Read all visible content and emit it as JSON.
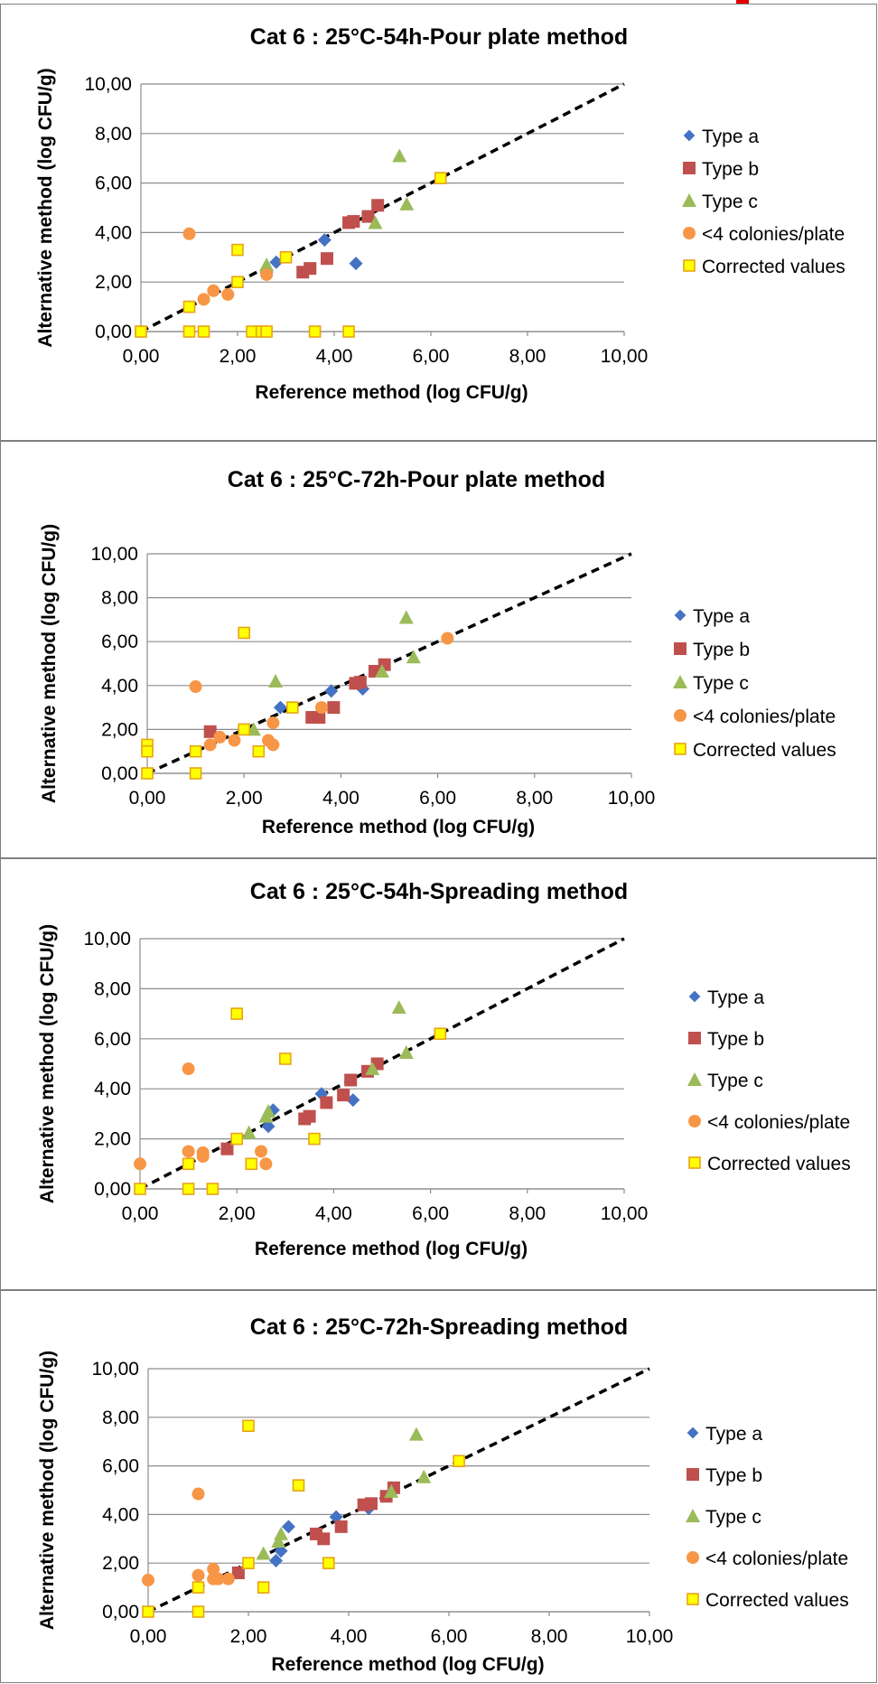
{
  "chart_data": [
    {
      "type": "scatter",
      "title": "Cat 6 : 25°C-54h-Pour plate method",
      "xlabel": "Reference method (log CFU/g)",
      "ylabel": "Alternative method (log CFU/g)",
      "xlim": [
        0,
        10
      ],
      "ylim": [
        0,
        10
      ],
      "x_ticks": [
        "0,00",
        "2,00",
        "4,00",
        "6,00",
        "8,00",
        "10,00"
      ],
      "y_ticks": [
        "0,00",
        "2,00",
        "4,00",
        "6,00",
        "8,00",
        "10,00"
      ],
      "grid": true,
      "diagonal_line": true,
      "legend_position": "right",
      "series": [
        {
          "name": "Type a",
          "marker": "diamond",
          "color": "#4472c4",
          "x": [
            2.6,
            2.8,
            3.8,
            4.45
          ],
          "y": [
            2.4,
            2.8,
            3.7,
            2.75
          ]
        },
        {
          "name": "Type b",
          "marker": "square",
          "color": "#c0504d",
          "x": [
            3.35,
            3.5,
            3.85,
            4.3,
            4.4,
            4.7,
            4.9
          ],
          "y": [
            2.4,
            2.55,
            2.95,
            4.4,
            4.45,
            4.65,
            5.1
          ]
        },
        {
          "name": "Type c",
          "marker": "triangle",
          "color": "#9bbb59",
          "x": [
            2.6,
            4.85,
            5.35,
            5.5
          ],
          "y": [
            2.7,
            4.4,
            7.1,
            5.15
          ]
        },
        {
          "name": "<4 colonies/plate",
          "marker": "circle",
          "color": "#f79646",
          "x": [
            0.0,
            1.0,
            1.0,
            1.3,
            1.5,
            1.8,
            2.6
          ],
          "y": [
            0.0,
            3.95,
            1.0,
            1.3,
            1.65,
            1.5,
            2.3
          ]
        },
        {
          "name": "Corrected values",
          "marker": "square-open",
          "color": "#ffff00",
          "x": [
            0.0,
            1.0,
            1.0,
            1.3,
            2.0,
            2.0,
            2.3,
            2.5,
            2.6,
            3.0,
            3.6,
            4.3,
            6.2
          ],
          "y": [
            0.0,
            1.0,
            0.0,
            0.0,
            3.3,
            2.0,
            0.0,
            0.0,
            0.0,
            3.0,
            0.0,
            0.0,
            6.2
          ]
        }
      ]
    },
    {
      "type": "scatter",
      "title": "Cat 6 : 25°C-72h-Pour plate method",
      "xlabel": "Reference method (log CFU/g)",
      "ylabel": "Alternative method (log CFU/g)",
      "xlim": [
        0,
        10
      ],
      "ylim": [
        0,
        10
      ],
      "x_ticks": [
        "0,00",
        "2,00",
        "4,00",
        "6,00",
        "8,00",
        "10,00"
      ],
      "y_ticks": [
        "0,00",
        "2,00",
        "4,00",
        "6,00",
        "8,00",
        "10,00"
      ],
      "grid": true,
      "diagonal_line": true,
      "legend_position": "right",
      "series": [
        {
          "name": "Type a",
          "marker": "diamond",
          "color": "#4472c4",
          "x": [
            2.75,
            3.8,
            4.45
          ],
          "y": [
            3.0,
            3.75,
            3.85
          ]
        },
        {
          "name": "Type b",
          "marker": "square",
          "color": "#c0504d",
          "x": [
            1.3,
            3.4,
            3.55,
            3.85,
            4.3,
            4.4,
            4.7,
            4.9
          ],
          "y": [
            1.9,
            2.55,
            2.55,
            3.0,
            4.1,
            4.15,
            4.65,
            4.95
          ]
        },
        {
          "name": "Type c",
          "marker": "triangle",
          "color": "#9bbb59",
          "x": [
            2.2,
            2.65,
            4.85,
            5.35,
            5.5
          ],
          "y": [
            2.0,
            4.2,
            4.65,
            7.1,
            5.3
          ]
        },
        {
          "name": "<4 colonies/plate",
          "marker": "circle",
          "color": "#f79646",
          "x": [
            1.0,
            1.3,
            1.5,
            1.8,
            2.5,
            2.6,
            2.6,
            3.6,
            6.2
          ],
          "y": [
            3.95,
            1.3,
            1.65,
            1.5,
            1.5,
            1.3,
            2.3,
            3.0,
            6.15
          ]
        },
        {
          "name": "Corrected values",
          "marker": "square-open",
          "color": "#ffff00",
          "x": [
            0.0,
            0.0,
            0.0,
            1.0,
            1.0,
            2.0,
            2.0,
            2.3,
            3.0
          ],
          "y": [
            1.3,
            1.0,
            0.0,
            1.0,
            0.0,
            6.4,
            2.0,
            1.0,
            3.0
          ]
        }
      ]
    },
    {
      "type": "scatter",
      "title": "Cat 6 : 25°C-54h-Spreading method",
      "xlabel": "Reference method (log CFU/g)",
      "ylabel": "Alternative method (log CFU/g)",
      "xlim": [
        0,
        10
      ],
      "ylim": [
        0,
        10
      ],
      "x_ticks": [
        "0,00",
        "2,00",
        "4,00",
        "6,00",
        "8,00",
        "10,00"
      ],
      "y_ticks": [
        "0,00",
        "2,00",
        "4,00",
        "6,00",
        "8,00",
        "10,00"
      ],
      "grid": true,
      "diagonal_line": true,
      "legend_position": "right",
      "series": [
        {
          "name": "Type a",
          "marker": "diamond",
          "color": "#4472c4",
          "x": [
            2.65,
            2.75,
            3.75,
            4.4
          ],
          "y": [
            2.5,
            3.15,
            3.8,
            3.55
          ]
        },
        {
          "name": "Type b",
          "marker": "square",
          "color": "#c0504d",
          "x": [
            1.8,
            3.4,
            3.5,
            3.85,
            4.2,
            4.35,
            4.7,
            4.9
          ],
          "y": [
            1.6,
            2.8,
            2.9,
            3.45,
            3.75,
            4.35,
            4.7,
            5.0
          ]
        },
        {
          "name": "Type c",
          "marker": "triangle",
          "color": "#9bbb59",
          "x": [
            2.25,
            2.6,
            2.65,
            4.8,
            5.35,
            5.5
          ],
          "y": [
            2.25,
            2.9,
            3.1,
            4.8,
            7.25,
            5.45
          ]
        },
        {
          "name": "<4 colonies/plate",
          "marker": "circle",
          "color": "#f79646",
          "x": [
            0.0,
            1.0,
            1.0,
            1.3,
            1.3,
            2.5,
            2.6
          ],
          "y": [
            1.0,
            4.8,
            1.5,
            1.45,
            1.3,
            1.5,
            1.0
          ]
        },
        {
          "name": "Corrected values",
          "marker": "square-open",
          "color": "#ffff00",
          "x": [
            0.0,
            1.0,
            1.0,
            1.5,
            2.0,
            2.0,
            2.3,
            3.0,
            3.6,
            6.2
          ],
          "y": [
            0.0,
            1.0,
            0.0,
            0.0,
            7.0,
            2.0,
            1.0,
            5.2,
            2.0,
            6.2
          ]
        }
      ]
    },
    {
      "type": "scatter",
      "title": "Cat 6 : 25°C-72h-Spreading method",
      "xlabel": "Reference method (log CFU/g)",
      "ylabel": "Alternative method (log CFU/g)",
      "xlim": [
        0,
        10
      ],
      "ylim": [
        0,
        10
      ],
      "x_ticks": [
        "0,00",
        "2,00",
        "4,00",
        "6,00",
        "8,00",
        "10,00"
      ],
      "y_ticks": [
        "0,00",
        "2,00",
        "4,00",
        "6,00",
        "8,00",
        "10,00"
      ],
      "grid": true,
      "diagonal_line": true,
      "legend_position": "right",
      "series": [
        {
          "name": "Type a",
          "marker": "diamond",
          "color": "#4472c4",
          "x": [
            2.55,
            2.65,
            2.8,
            3.75,
            4.4
          ],
          "y": [
            2.1,
            2.5,
            3.5,
            3.9,
            4.25
          ]
        },
        {
          "name": "Type b",
          "marker": "square",
          "color": "#c0504d",
          "x": [
            1.8,
            3.35,
            3.5,
            3.85,
            4.3,
            4.45,
            4.75,
            4.9
          ],
          "y": [
            1.6,
            3.2,
            3.0,
            3.5,
            4.4,
            4.45,
            4.75,
            5.1
          ]
        },
        {
          "name": "Type c",
          "marker": "triangle",
          "color": "#9bbb59",
          "x": [
            2.3,
            2.6,
            2.65,
            4.85,
            5.35,
            5.5
          ],
          "y": [
            2.4,
            2.9,
            3.2,
            4.95,
            7.3,
            5.55
          ]
        },
        {
          "name": "<4 colonies/plate",
          "marker": "circle",
          "color": "#f79646",
          "x": [
            0.0,
            1.0,
            1.0,
            1.3,
            1.3,
            1.4,
            1.6
          ],
          "y": [
            1.3,
            4.85,
            1.5,
            1.35,
            1.75,
            1.35,
            1.35
          ]
        },
        {
          "name": "Corrected values",
          "marker": "square-open",
          "color": "#ffff00",
          "x": [
            0.0,
            1.0,
            1.0,
            2.0,
            2.0,
            2.3,
            3.0,
            3.6,
            6.2
          ],
          "y": [
            0.0,
            1.0,
            0.0,
            7.65,
            2.0,
            1.0,
            5.2,
            2.0,
            6.2
          ]
        }
      ]
    }
  ]
}
